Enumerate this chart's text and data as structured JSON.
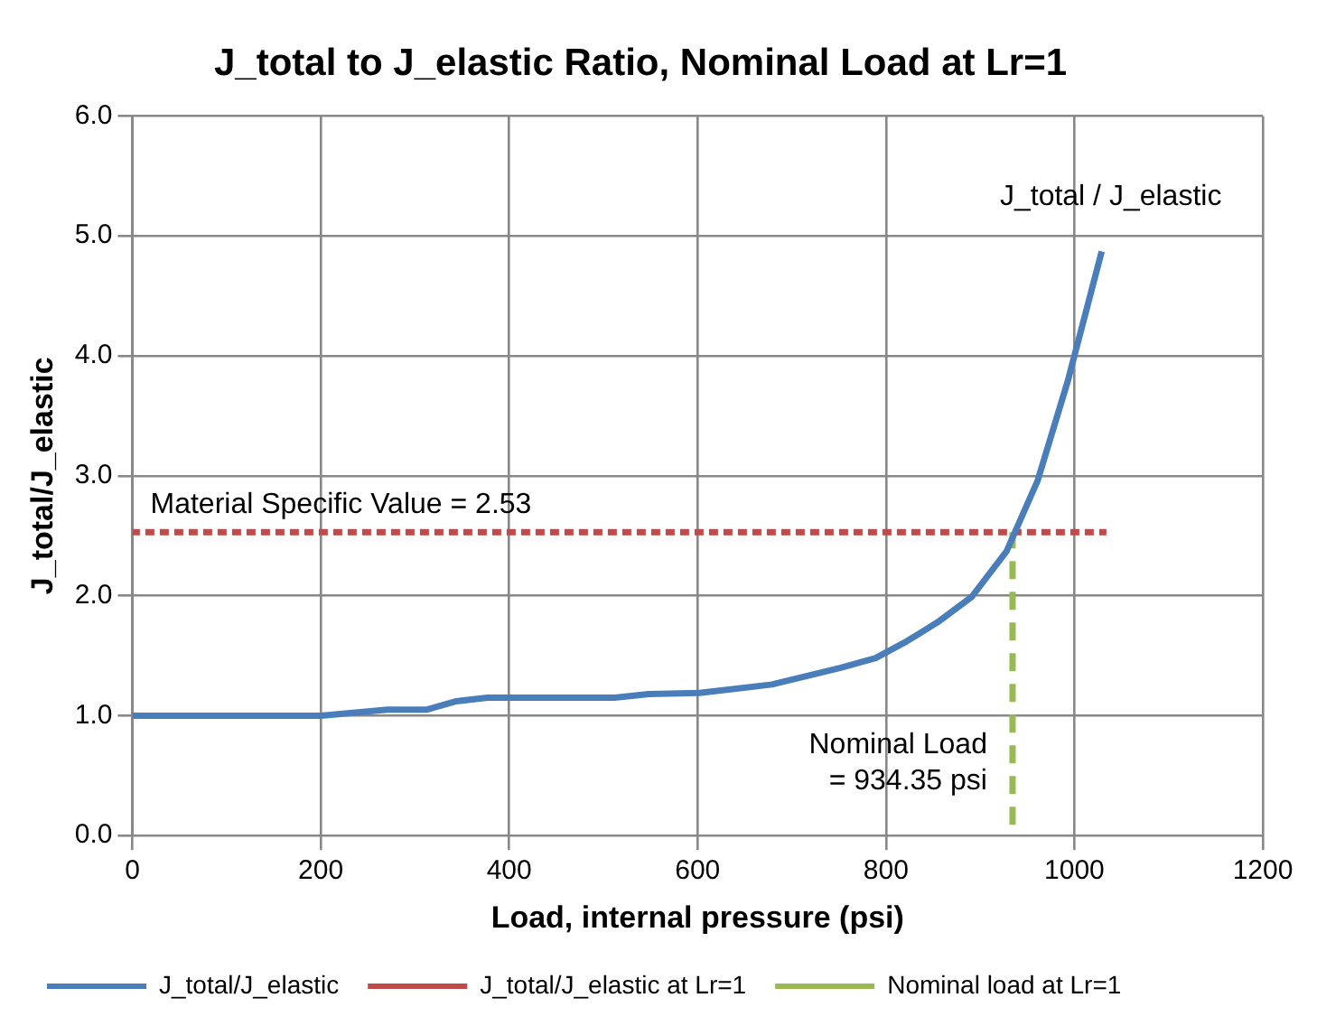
{
  "chart_data": {
    "type": "line",
    "title": "J_total to J_elastic Ratio, Nominal Load at Lr=1",
    "xlabel": "Load, internal pressure (psi)",
    "ylabel": "J_total/J_elastic",
    "xlim": [
      0,
      1200
    ],
    "xticks": [
      0,
      200,
      400,
      600,
      800,
      1000,
      1200
    ],
    "ylim": [
      0,
      6
    ],
    "yticks": [
      {
        "value": 0,
        "label": "0.0"
      },
      {
        "value": 1,
        "label": "1.0"
      },
      {
        "value": 2,
        "label": "2.0"
      },
      {
        "value": 3,
        "label": "3.0"
      },
      {
        "value": 4,
        "label": "4.0"
      },
      {
        "value": 5,
        "label": "5.0"
      },
      {
        "value": 6,
        "label": "6.0"
      }
    ],
    "grid": true,
    "legend": "bottom",
    "marker": "none",
    "series": [
      {
        "name": "J_total/J_elastic",
        "color": "#4a7ebb",
        "line_style": "solid",
        "x": [
          0,
          200,
          271,
          312,
          344,
          377,
          512,
          548,
          602,
          679,
          752,
          789,
          822,
          855,
          891,
          928,
          961,
          993,
          1029
        ],
        "values": [
          1.0,
          1.0,
          1.05,
          1.05,
          1.12,
          1.15,
          1.15,
          1.18,
          1.19,
          1.26,
          1.4,
          1.48,
          1.62,
          1.78,
          1.99,
          2.37,
          2.96,
          3.79,
          4.87
        ]
      },
      {
        "name": "J_total/J_elastic at Lr=1",
        "color": "#be4b48",
        "line_style": "dotted",
        "x": [
          0,
          1034
        ],
        "values": [
          2.53,
          2.53
        ]
      },
      {
        "name": "Nominal load at Lr=1",
        "color": "#98b954",
        "line_style": "dashed",
        "x": [
          934.35,
          934.35
        ],
        "values": [
          0,
          2.53
        ]
      }
    ],
    "annotations": [
      {
        "text": "J_total / J_elastic",
        "x": 1029,
        "y": 4.87
      },
      {
        "text": "Material Specific Value = 2.53",
        "y": 2.53
      },
      {
        "text": "Nominal Load\n= 934.35 psi",
        "x": 934.35,
        "y": 0
      }
    ]
  }
}
